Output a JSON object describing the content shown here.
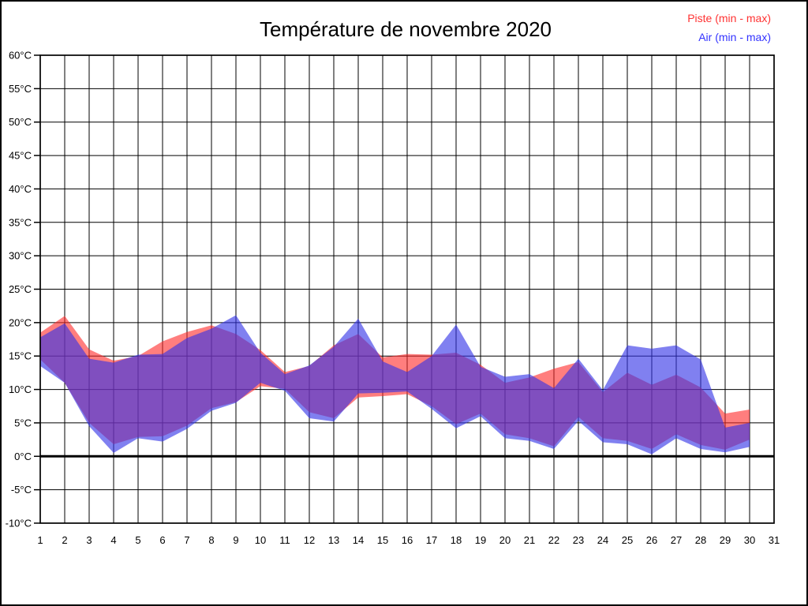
{
  "header": {
    "title": "Température de novembre 2020"
  },
  "legend": [
    {
      "label": "Piste (min - max)",
      "color": "#ff3232"
    },
    {
      "label": "Air (min - max)",
      "color": "#3232ff"
    }
  ],
  "colors": {
    "piste_fill": "#ff2828",
    "air_fill": "#3232e6",
    "grid": "#000000",
    "zero_line": "#000000",
    "axis_border": "#000000"
  },
  "chart_data": {
    "type": "area",
    "title": "Température de novembre 2020",
    "xlabel": "",
    "ylabel": "",
    "x_ticks": [
      1,
      2,
      3,
      4,
      5,
      6,
      7,
      8,
      9,
      10,
      11,
      12,
      13,
      14,
      15,
      16,
      17,
      18,
      19,
      20,
      21,
      22,
      23,
      24,
      25,
      26,
      27,
      28,
      29,
      30,
      31
    ],
    "x_range": [
      1,
      31
    ],
    "ylim": [
      -10,
      60
    ],
    "ytick_step": 5,
    "ytick_suffix": "°C",
    "grid": true,
    "zero_line": true,
    "legend_position": "top-right",
    "days": [
      1,
      2,
      3,
      4,
      5,
      6,
      7,
      8,
      9,
      10,
      11,
      12,
      13,
      14,
      15,
      16,
      17,
      18,
      19,
      20,
      21,
      22,
      23,
      24,
      25,
      26,
      27,
      28,
      29,
      30
    ],
    "series": [
      {
        "name": "Piste (min - max)",
        "color": "#ff2828",
        "opacity": 0.6,
        "min": [
          14.5,
          11.0,
          5.0,
          1.8,
          2.9,
          3.0,
          4.6,
          7.2,
          8.1,
          10.5,
          10.1,
          6.6,
          5.7,
          8.8,
          9.0,
          9.3,
          7.5,
          4.8,
          6.4,
          3.3,
          2.7,
          1.5,
          5.9,
          2.7,
          2.3,
          1.1,
          3.3,
          1.7,
          1.0,
          2.5
        ],
        "max": [
          18.5,
          21.0,
          16.0,
          14.3,
          15.0,
          17.2,
          18.6,
          19.6,
          18.3,
          15.9,
          12.6,
          13.5,
          16.6,
          18.3,
          14.8,
          15.3,
          15.2,
          15.5,
          13.7,
          11.0,
          11.8,
          13.1,
          14.1,
          9.6,
          12.5,
          10.7,
          12.2,
          10.3,
          6.4,
          7.0
        ]
      },
      {
        "name": "Air (min - max)",
        "color": "#3232e6",
        "opacity": 0.62,
        "min": [
          13.5,
          11.0,
          4.5,
          0.5,
          2.7,
          2.2,
          4.1,
          6.8,
          8.0,
          11.0,
          9.8,
          5.7,
          5.2,
          9.4,
          9.5,
          9.7,
          7.1,
          4.2,
          6.0,
          2.7,
          2.3,
          1.1,
          5.3,
          2.1,
          1.8,
          0.3,
          2.7,
          1.1,
          0.6,
          1.4
        ],
        "max": [
          17.8,
          19.9,
          14.6,
          14.0,
          15.2,
          15.3,
          17.7,
          19.1,
          21.1,
          15.5,
          12.3,
          13.6,
          16.4,
          20.6,
          14.2,
          12.6,
          15.0,
          19.7,
          13.4,
          11.9,
          12.3,
          10.2,
          14.6,
          9.9,
          16.6,
          16.1,
          16.6,
          14.5,
          4.3,
          5.0
        ]
      }
    ]
  }
}
